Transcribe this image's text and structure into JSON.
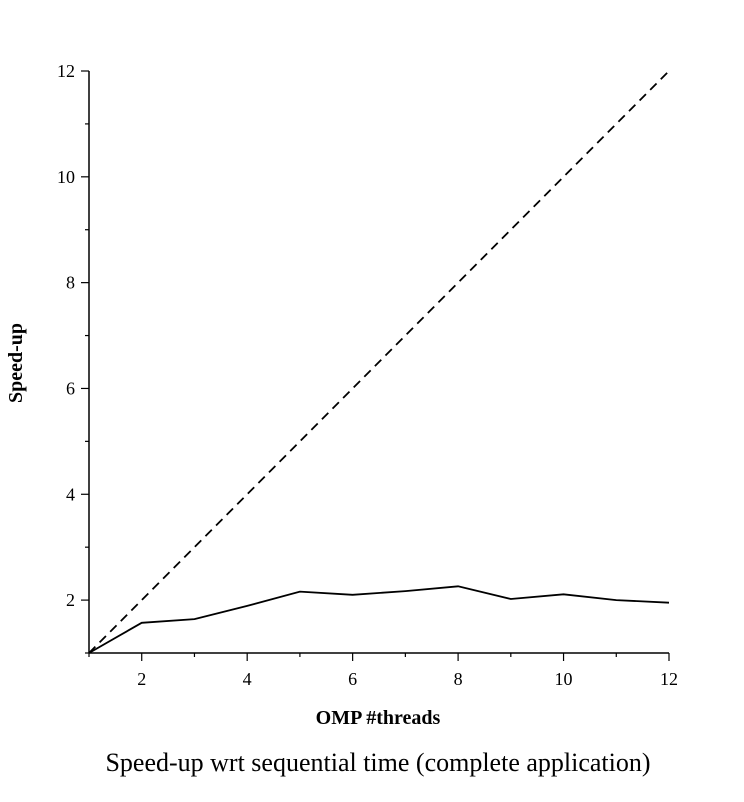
{
  "chart_data": {
    "type": "line",
    "title": "",
    "caption": "Speed-up wrt sequential time (complete application)",
    "xlabel": "OMP #threads",
    "ylabel": "Speed-up",
    "xlim": [
      1,
      12
    ],
    "ylim": [
      1,
      12
    ],
    "xticks": [
      2,
      4,
      6,
      8,
      10,
      12
    ],
    "yticks": [
      2,
      4,
      6,
      8,
      10,
      12
    ],
    "grid": false,
    "series": [
      {
        "style": "solid",
        "color": "#000000",
        "x": [
          1,
          2,
          3,
          4,
          5,
          6,
          7,
          8,
          9,
          10,
          11,
          12
        ],
        "y": [
          1.0,
          1.57,
          1.64,
          1.89,
          2.16,
          2.1,
          2.17,
          2.26,
          2.02,
          2.11,
          2.0,
          1.95
        ]
      },
      {
        "style": "dashed",
        "color": "#000000",
        "x": [
          1,
          12
        ],
        "y": [
          1,
          12
        ]
      }
    ]
  }
}
